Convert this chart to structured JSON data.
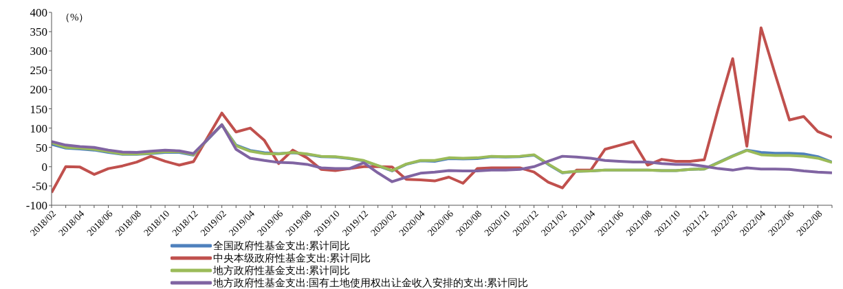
{
  "chart_data": {
    "type": "line",
    "ylabel": "（%）",
    "categories": [
      "2018/02",
      null,
      "2018/04",
      null,
      "2018/06",
      null,
      "2018/08",
      null,
      "2018/10",
      null,
      "2018/12",
      null,
      "2019/02",
      null,
      "2019/04",
      null,
      "2019/06",
      null,
      "2019/08",
      null,
      "2019/10",
      null,
      "2019/12",
      null,
      "2020/02",
      null,
      "2020/04",
      null,
      "2020/06",
      null,
      "2020/08",
      null,
      "2020/10",
      null,
      "2020/12",
      null,
      "2021/02",
      null,
      "2021/04",
      null,
      "2021/06",
      null,
      "2021/08",
      null,
      "2021/10",
      null,
      "2021/12",
      null,
      "2022/02",
      null,
      "2022/04",
      null,
      "2022/06",
      null,
      "2022/08",
      null
    ],
    "series": [
      {
        "name": "全国政府性基金支出:累计同比",
        "color": "#4f81bd",
        "values": [
          58,
          48,
          46,
          43,
          37,
          32,
          32,
          34,
          37,
          37,
          30,
          70,
          108,
          56,
          42,
          36,
          34,
          36,
          32,
          26,
          25,
          21,
          15,
          2,
          -11,
          6,
          15,
          14,
          21,
          20,
          21,
          26,
          25,
          26,
          30,
          6,
          -16,
          -12,
          -11,
          -9,
          -9,
          -9,
          -9,
          -10,
          -10,
          -7,
          -6,
          11,
          28,
          43,
          37,
          35,
          35,
          33,
          26,
          12
        ]
      },
      {
        "name": "中央本级政府性基金支出:累计同比",
        "color": "#c0504d",
        "values": [
          -67,
          0,
          -1,
          -20,
          -5,
          2,
          12,
          27,
          14,
          4,
          13,
          76,
          139,
          90,
          100,
          68,
          8,
          43,
          23,
          -7,
          -10,
          -5,
          0,
          0,
          -1,
          -33,
          -34,
          -37,
          -27,
          -43,
          -5,
          -3,
          -3,
          -3,
          -14,
          -40,
          -55,
          -9,
          -9,
          45,
          55,
          65,
          4,
          19,
          14,
          14,
          18,
          153,
          280,
          53,
          360,
          239,
          121,
          130,
          91,
          76
        ]
      },
      {
        "name": "地方政府性基金支出:累计同比",
        "color": "#9bbb59",
        "values": [
          62,
          50,
          48,
          45,
          39,
          33,
          33,
          35,
          39,
          39,
          31,
          71,
          109,
          54,
          40,
          34,
          33,
          37,
          33,
          27,
          26,
          22,
          16,
          3,
          -10,
          7,
          16,
          16,
          23,
          22,
          23,
          27,
          26,
          27,
          31,
          7,
          -15,
          -12,
          -11,
          -9,
          -9,
          -9,
          -9,
          -10,
          -10,
          -7,
          -6,
          10,
          27,
          42,
          31,
          29,
          29,
          27,
          22,
          11
        ]
      },
      {
        "name": "地方政府性基金支出:国有土地使用权出让金收入安排的支出:累计同比",
        "color": "#8064a2",
        "values": [
          65,
          56,
          52,
          50,
          43,
          38,
          37,
          40,
          43,
          41,
          34,
          71,
          109,
          45,
          22,
          16,
          11,
          10,
          6,
          -3,
          -5,
          -5,
          10,
          -16,
          -39,
          -27,
          -17,
          -14,
          -10,
          -11,
          -11,
          -9,
          -9,
          -7,
          0,
          14,
          27,
          25,
          22,
          16,
          14,
          12,
          12,
          8,
          6,
          6,
          1,
          -5,
          -9,
          -3,
          -6,
          -6,
          -7,
          -11,
          -14,
          -16
        ]
      }
    ],
    "ylim": [
      -100,
      400
    ],
    "yticks": [
      -100,
      -50,
      0,
      50,
      100,
      150,
      200,
      250,
      300,
      350,
      400
    ],
    "grid": false,
    "legend": "bottom",
    "marker": "none",
    "line_style": "solid"
  }
}
